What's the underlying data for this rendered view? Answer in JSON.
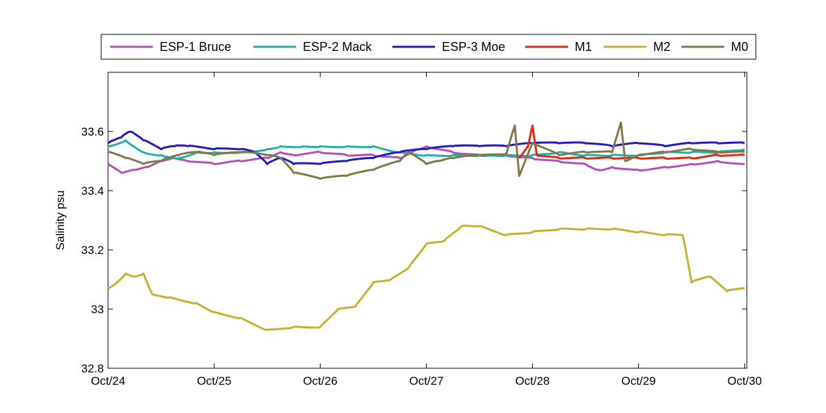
{
  "chart_data": {
    "type": "line",
    "title": "",
    "xlabel": "",
    "ylabel": "Salinity psu",
    "ylim": [
      32.8,
      33.8
    ],
    "xlim": [
      "2010-10-24 00:00",
      "2010-10-30 00:30"
    ],
    "grid": false,
    "legend_position": "top, outside, horizontal",
    "x_ticks": [
      {
        "value": "Oct/24"
      },
      {
        "value": "Oct/25"
      },
      {
        "value": "Oct/26"
      },
      {
        "value": "Oct/27"
      },
      {
        "value": "Oct/28"
      },
      {
        "value": "Oct/29"
      },
      {
        "value": "Oct/30"
      }
    ],
    "y_ticks": [
      32.8,
      33,
      33.2,
      33.4,
      33.6
    ],
    "y_tick_labels": [
      "32.8",
      "33",
      "33.2",
      "33.4",
      "33.6"
    ],
    "series": [
      {
        "name": "ESP-1 Bruce",
        "color": "#b050b8",
        "points": [
          [
            "2010-10-24 00:00",
            33.49
          ],
          [
            "2010-10-24 03:00",
            33.46
          ],
          [
            "2010-10-24 06:00",
            33.47
          ],
          [
            "2010-10-24 09:00",
            33.48
          ],
          [
            "2010-10-24 12:00",
            33.5
          ],
          [
            "2010-10-24 15:00",
            33.51
          ],
          [
            "2010-10-24 18:00",
            33.5
          ],
          [
            "2010-10-25 00:00",
            33.49
          ],
          [
            "2010-10-25 06:00",
            33.5
          ],
          [
            "2010-10-25 12:00",
            33.51
          ],
          [
            "2010-10-25 15:00",
            33.53
          ],
          [
            "2010-10-25 18:00",
            33.52
          ],
          [
            "2010-10-26 00:00",
            33.53
          ],
          [
            "2010-10-26 06:00",
            33.52
          ],
          [
            "2010-10-26 12:00",
            33.52
          ],
          [
            "2010-10-26 18:00",
            33.51
          ],
          [
            "2010-10-26 22:00",
            33.54
          ],
          [
            "2010-10-27 00:00",
            33.55
          ],
          [
            "2010-10-27 06:00",
            33.53
          ],
          [
            "2010-10-27 12:00",
            33.52
          ],
          [
            "2010-10-27 18:00",
            33.52
          ],
          [
            "2010-10-28 00:00",
            33.51
          ],
          [
            "2010-10-28 06:00",
            33.5
          ],
          [
            "2010-10-28 12:00",
            33.49
          ],
          [
            "2010-10-28 15:00",
            33.47
          ],
          [
            "2010-10-28 18:00",
            33.48
          ],
          [
            "2010-10-29 00:00",
            33.47
          ],
          [
            "2010-10-29 06:00",
            33.48
          ],
          [
            "2010-10-29 12:00",
            33.49
          ],
          [
            "2010-10-29 18:00",
            33.5
          ],
          [
            "2010-10-30 00:00",
            33.49
          ]
        ]
      },
      {
        "name": "ESP-2 Mack",
        "color": "#20b0a8",
        "points": [
          [
            "2010-10-24 00:00",
            33.55
          ],
          [
            "2010-10-24 04:00",
            33.57
          ],
          [
            "2010-10-24 08:00",
            33.53
          ],
          [
            "2010-10-24 12:00",
            33.52
          ],
          [
            "2010-10-24 16:00",
            33.51
          ],
          [
            "2010-10-24 20:00",
            33.53
          ],
          [
            "2010-10-25 00:00",
            33.53
          ],
          [
            "2010-10-25 06:00",
            33.53
          ],
          [
            "2010-10-25 12:00",
            33.54
          ],
          [
            "2010-10-25 15:00",
            33.55
          ],
          [
            "2010-10-25 20:00",
            33.55
          ],
          [
            "2010-10-26 00:00",
            33.55
          ],
          [
            "2010-10-26 06:00",
            33.55
          ],
          [
            "2010-10-26 12:00",
            33.55
          ],
          [
            "2010-10-26 18:00",
            33.53
          ],
          [
            "2010-10-27 00:00",
            33.52
          ],
          [
            "2010-10-27 06:00",
            33.52
          ],
          [
            "2010-10-27 12:00",
            33.52
          ],
          [
            "2010-10-27 18:00",
            33.52
          ],
          [
            "2010-10-28 00:00",
            33.52
          ],
          [
            "2010-10-28 06:00",
            33.53
          ],
          [
            "2010-10-28 12:00",
            33.52
          ],
          [
            "2010-10-28 18:00",
            33.52
          ],
          [
            "2010-10-29 00:00",
            33.52
          ],
          [
            "2010-10-29 06:00",
            33.53
          ],
          [
            "2010-10-29 12:00",
            33.53
          ],
          [
            "2010-10-29 18:00",
            33.53
          ],
          [
            "2010-10-30 00:00",
            33.54
          ]
        ]
      },
      {
        "name": "ESP-3 Moe",
        "color": "#2818c0",
        "points": [
          [
            "2010-10-24 00:00",
            33.56
          ],
          [
            "2010-10-24 03:00",
            33.58
          ],
          [
            "2010-10-24 05:00",
            33.6
          ],
          [
            "2010-10-24 08:00",
            33.57
          ],
          [
            "2010-10-24 12:00",
            33.54
          ],
          [
            "2010-10-24 15:00",
            33.55
          ],
          [
            "2010-10-24 18:00",
            33.55
          ],
          [
            "2010-10-25 00:00",
            33.54
          ],
          [
            "2010-10-25 06:00",
            33.54
          ],
          [
            "2010-10-25 09:00",
            33.53
          ],
          [
            "2010-10-25 12:00",
            33.49
          ],
          [
            "2010-10-25 15:00",
            33.51
          ],
          [
            "2010-10-25 18:00",
            33.49
          ],
          [
            "2010-10-26 00:00",
            33.49
          ],
          [
            "2010-10-26 06:00",
            33.5
          ],
          [
            "2010-10-26 12:00",
            33.51
          ],
          [
            "2010-10-26 18:00",
            33.53
          ],
          [
            "2010-10-27 00:00",
            33.54
          ],
          [
            "2010-10-27 06:00",
            33.55
          ],
          [
            "2010-10-27 12:00",
            33.55
          ],
          [
            "2010-10-27 18:00",
            33.55
          ],
          [
            "2010-10-28 00:00",
            33.56
          ],
          [
            "2010-10-28 06:00",
            33.56
          ],
          [
            "2010-10-28 12:00",
            33.56
          ],
          [
            "2010-10-28 18:00",
            33.55
          ],
          [
            "2010-10-29 00:00",
            33.56
          ],
          [
            "2010-10-29 06:00",
            33.55
          ],
          [
            "2010-10-29 12:00",
            33.56
          ],
          [
            "2010-10-29 18:00",
            33.56
          ],
          [
            "2010-10-30 00:00",
            33.56
          ]
        ]
      },
      {
        "name": "M1",
        "color": "#e02810",
        "points": [
          [
            "2010-10-27 21:00",
            33.51
          ],
          [
            "2010-10-27 23:00",
            33.55
          ],
          [
            "2010-10-28 00:00",
            33.62
          ],
          [
            "2010-10-28 01:00",
            33.52
          ],
          [
            "2010-10-28 06:00",
            33.51
          ],
          [
            "2010-10-28 12:00",
            33.51
          ],
          [
            "2010-10-28 18:00",
            33.51
          ],
          [
            "2010-10-29 00:00",
            33.51
          ],
          [
            "2010-10-29 06:00",
            33.51
          ],
          [
            "2010-10-29 12:00",
            33.51
          ],
          [
            "2010-10-29 18:00",
            33.52
          ],
          [
            "2010-10-30 00:00",
            33.52
          ]
        ]
      },
      {
        "name": "M2",
        "color": "#c8b030",
        "points": [
          [
            "2010-10-24 00:00",
            33.07
          ],
          [
            "2010-10-24 02:00",
            33.09
          ],
          [
            "2010-10-24 04:00",
            33.12
          ],
          [
            "2010-10-24 06:00",
            33.11
          ],
          [
            "2010-10-24 08:00",
            33.12
          ],
          [
            "2010-10-24 10:00",
            33.05
          ],
          [
            "2010-10-24 14:00",
            33.04
          ],
          [
            "2010-10-24 20:00",
            33.02
          ],
          [
            "2010-10-25 00:00",
            32.99
          ],
          [
            "2010-10-25 06:00",
            32.97
          ],
          [
            "2010-10-25 12:00",
            32.93
          ],
          [
            "2010-10-25 18:00",
            32.94
          ],
          [
            "2010-10-26 00:00",
            32.94
          ],
          [
            "2010-10-26 04:00",
            33.0
          ],
          [
            "2010-10-26 08:00",
            33.01
          ],
          [
            "2010-10-26 12:00",
            33.09
          ],
          [
            "2010-10-26 16:00",
            33.1
          ],
          [
            "2010-10-26 20:00",
            33.14
          ],
          [
            "2010-10-27 00:00",
            33.22
          ],
          [
            "2010-10-27 04:00",
            33.23
          ],
          [
            "2010-10-27 08:00",
            33.28
          ],
          [
            "2010-10-27 12:00",
            33.28
          ],
          [
            "2010-10-27 18:00",
            33.25
          ],
          [
            "2010-10-28 00:00",
            33.26
          ],
          [
            "2010-10-28 06:00",
            33.27
          ],
          [
            "2010-10-28 12:00",
            33.27
          ],
          [
            "2010-10-28 18:00",
            33.27
          ],
          [
            "2010-10-29 00:00",
            33.26
          ],
          [
            "2010-10-29 06:00",
            33.25
          ],
          [
            "2010-10-29 10:00",
            33.25
          ],
          [
            "2010-10-29 12:00",
            33.09
          ],
          [
            "2010-10-29 16:00",
            33.11
          ],
          [
            "2010-10-29 20:00",
            33.06
          ],
          [
            "2010-10-30 00:00",
            33.07
          ]
        ]
      },
      {
        "name": "M0",
        "color": "#807848",
        "points": [
          [
            "2010-10-24 00:00",
            33.53
          ],
          [
            "2010-10-24 04:00",
            33.51
          ],
          [
            "2010-10-24 08:00",
            33.49
          ],
          [
            "2010-10-24 12:00",
            33.5
          ],
          [
            "2010-10-24 16:00",
            33.52
          ],
          [
            "2010-10-24 20:00",
            33.53
          ],
          [
            "2010-10-25 00:00",
            33.52
          ],
          [
            "2010-10-25 06:00",
            33.53
          ],
          [
            "2010-10-25 12:00",
            33.52
          ],
          [
            "2010-10-25 15:00",
            33.51
          ],
          [
            "2010-10-25 18:00",
            33.46
          ],
          [
            "2010-10-26 00:00",
            33.44
          ],
          [
            "2010-10-26 06:00",
            33.45
          ],
          [
            "2010-10-26 12:00",
            33.47
          ],
          [
            "2010-10-26 18:00",
            33.5
          ],
          [
            "2010-10-26 20:00",
            33.53
          ],
          [
            "2010-10-27 00:00",
            33.49
          ],
          [
            "2010-10-27 03:00",
            33.5
          ],
          [
            "2010-10-27 06:00",
            33.51
          ],
          [
            "2010-10-27 12:00",
            33.52
          ],
          [
            "2010-10-27 18:00",
            33.52
          ],
          [
            "2010-10-27 20:00",
            33.62
          ],
          [
            "2010-10-27 21:00",
            33.45
          ],
          [
            "2010-10-28 00:00",
            33.56
          ],
          [
            "2010-10-28 06:00",
            33.52
          ],
          [
            "2010-10-28 12:00",
            33.53
          ],
          [
            "2010-10-28 18:00",
            33.53
          ],
          [
            "2010-10-28 20:00",
            33.63
          ],
          [
            "2010-10-28 21:00",
            33.5
          ],
          [
            "2010-10-29 00:00",
            33.52
          ],
          [
            "2010-10-29 06:00",
            33.53
          ],
          [
            "2010-10-29 12:00",
            33.54
          ],
          [
            "2010-10-29 18:00",
            33.53
          ],
          [
            "2010-10-30 00:00",
            33.53
          ]
        ]
      }
    ]
  }
}
